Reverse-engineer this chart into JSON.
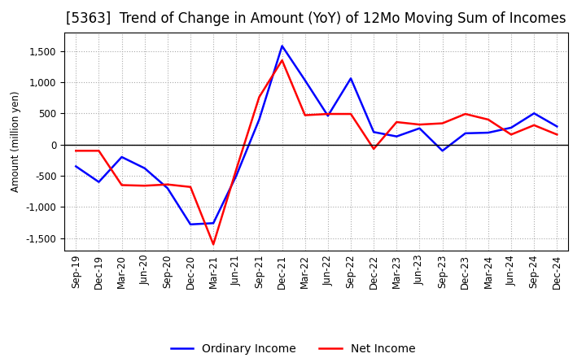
{
  "title": "[5363]  Trend of Change in Amount (YoY) of 12Mo Moving Sum of Incomes",
  "ylabel": "Amount (million yen)",
  "ylim": [
    -1700,
    1800
  ],
  "yticks": [
    -1500,
    -1000,
    -500,
    0,
    500,
    1000,
    1500
  ],
  "x_labels": [
    "Sep-19",
    "Dec-19",
    "Mar-20",
    "Jun-20",
    "Sep-20",
    "Dec-20",
    "Mar-21",
    "Jun-21",
    "Sep-21",
    "Dec-21",
    "Mar-22",
    "Jun-22",
    "Sep-22",
    "Dec-22",
    "Mar-23",
    "Jun-23",
    "Sep-23",
    "Dec-23",
    "Mar-24",
    "Jun-24",
    "Sep-24",
    "Dec-24"
  ],
  "ordinary_income": [
    -350,
    -600,
    -200,
    -380,
    -700,
    -1280,
    -1260,
    -500,
    400,
    1580,
    1030,
    460,
    1060,
    200,
    130,
    260,
    -100,
    180,
    190,
    270,
    500,
    290
  ],
  "net_income": [
    -100,
    -100,
    -650,
    -660,
    -640,
    -680,
    -1600,
    -400,
    760,
    1350,
    470,
    490,
    490,
    -70,
    360,
    320,
    340,
    490,
    400,
    160,
    310,
    160
  ],
  "ordinary_color": "#0000FF",
  "net_color": "#FF0000",
  "grid_color": "#AAAAAA",
  "background_color": "#FFFFFF",
  "title_fontsize": 12,
  "legend_fontsize": 10,
  "tick_fontsize": 8.5
}
